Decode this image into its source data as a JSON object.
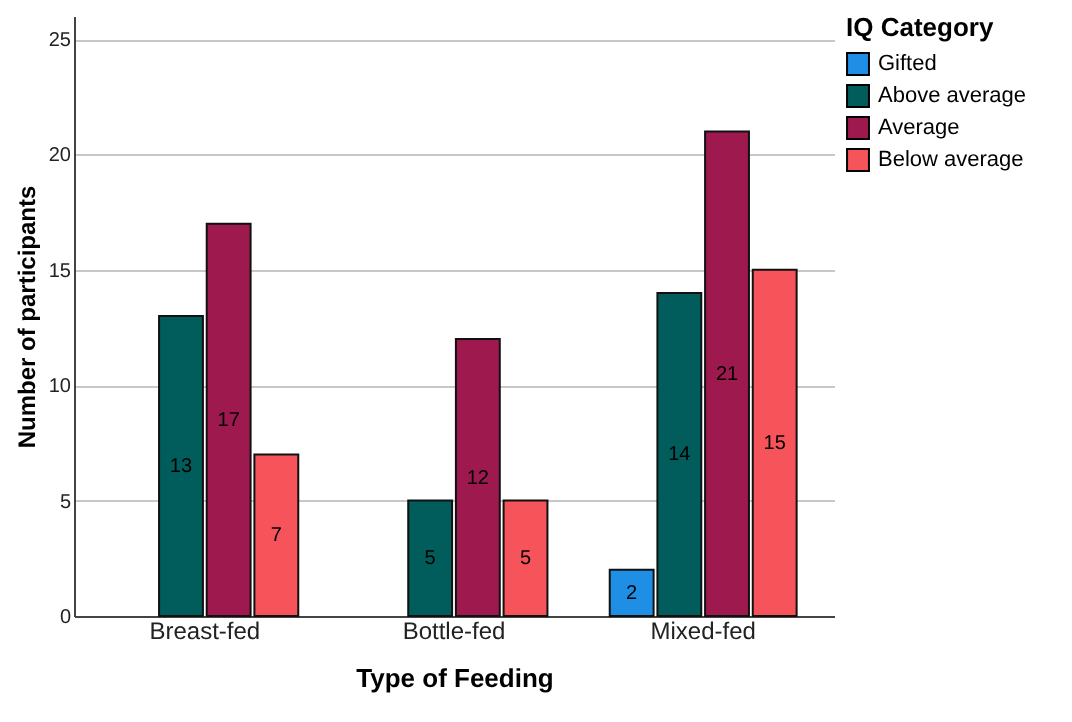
{
  "chart_data": {
    "type": "bar",
    "xlabel": "Type of Feeding",
    "ylabel": "Number of participants",
    "legend_title": "IQ Category",
    "categories": [
      "Breast-fed",
      "Bottle-fed",
      "Mixed-fed"
    ],
    "series": [
      {
        "name": "Gifted",
        "color": "#1f8fe5",
        "values": [
          null,
          null,
          2
        ]
      },
      {
        "name": "Above average",
        "color": "#015d5b",
        "values": [
          13,
          5,
          14
        ]
      },
      {
        "name": "Average",
        "color": "#9e1a4e",
        "values": [
          17,
          12,
          21
        ]
      },
      {
        "name": "Below average",
        "color": "#f6535a",
        "values": [
          7,
          5,
          15
        ]
      }
    ],
    "ylim": [
      0,
      26
    ],
    "yticks": [
      0,
      5,
      10,
      15,
      20,
      25
    ],
    "grid": "y",
    "legend": "top right",
    "data_labels": true
  }
}
